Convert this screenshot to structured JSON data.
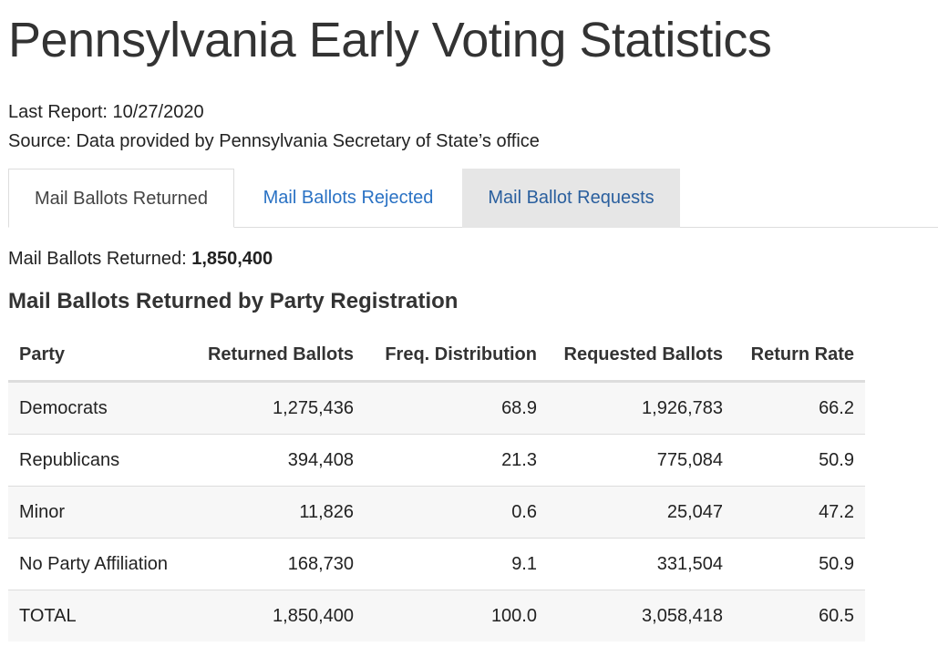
{
  "page": {
    "title": "Pennsylvania Early Voting Statistics",
    "last_report": "Last Report: 10/27/2020",
    "source": "Source: Data provided by Pennsylvania Secretary of State’s office"
  },
  "tabs": [
    {
      "label": "Mail Ballots Returned",
      "active": true
    },
    {
      "label": "Mail Ballots Rejected",
      "active": false
    },
    {
      "label": "Mail Ballot Requests",
      "active": false
    }
  ],
  "summary": {
    "label": "Mail Ballots Returned: ",
    "value": "1,850,400"
  },
  "section": {
    "heading": "Mail Ballots Returned by Party Registration"
  },
  "table": {
    "headers": [
      "Party",
      "Returned Ballots",
      "Freq. Distribution",
      "Requested Ballots",
      "Return Rate"
    ],
    "rows": [
      [
        "Democrats",
        "1,275,436",
        "68.9",
        "1,926,783",
        "66.2"
      ],
      [
        "Republicans",
        "394,408",
        "21.3",
        "775,084",
        "50.9"
      ],
      [
        "Minor",
        "11,826",
        "0.6",
        "25,047",
        "47.2"
      ],
      [
        "No Party Affiliation",
        "168,730",
        "9.1",
        "331,504",
        "50.9"
      ],
      [
        "TOTAL",
        "1,850,400",
        "100.0",
        "3,058,418",
        "60.5"
      ]
    ]
  },
  "colors": {
    "link": "#2a72c4",
    "inactive_tab_bg": "#e6e6e6",
    "stripe": "#f7f7f7",
    "border": "#dddddd"
  }
}
